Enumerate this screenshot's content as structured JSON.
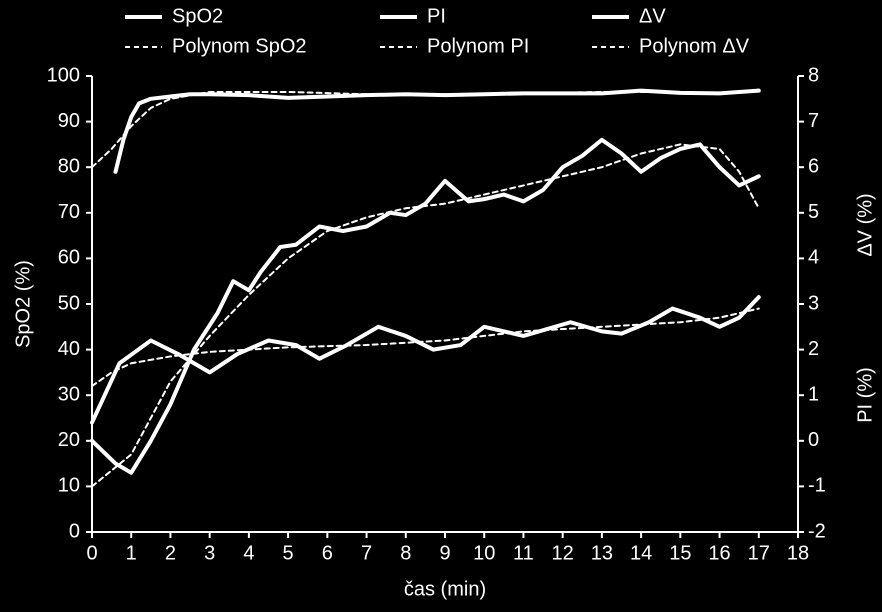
{
  "chart_data": {
    "type": "line",
    "xlabel": "čas (min)",
    "ylabel": "SpO2 (%)",
    "y2labels": [
      "ΔV (%)",
      "PI (%)"
    ],
    "xlim": [
      0,
      18
    ],
    "xticks": [
      0,
      1,
      2,
      3,
      4,
      5,
      6,
      7,
      8,
      9,
      10,
      11,
      12,
      13,
      14,
      15,
      16,
      17,
      18
    ],
    "ylim": [
      0,
      100
    ],
    "yticks": [
      0,
      10,
      20,
      30,
      40,
      50,
      60,
      70,
      80,
      90,
      100
    ],
    "y2lim": [
      -2,
      8
    ],
    "y2ticks": [
      -2,
      -1,
      0,
      1,
      2,
      3,
      4,
      5,
      6,
      7,
      8
    ],
    "series": [
      {
        "name": "SpO2",
        "color": "#ffffff",
        "dashed": false,
        "x": [
          0.6,
          0.8,
          1,
          1.2,
          1.5,
          2,
          2.5,
          3,
          4,
          5,
          6,
          7,
          8,
          9,
          10,
          11,
          12,
          13,
          14,
          15,
          16,
          17
        ],
        "values": [
          79,
          86,
          91,
          94,
          95,
          95.5,
          96,
          96,
          95.8,
          95.2,
          95.5,
          95.8,
          96,
          95.8,
          96,
          96.2,
          96.2,
          96.2,
          96.8,
          96.3,
          96.2,
          96.8
        ]
      },
      {
        "name": "PI",
        "color": "#ffffff",
        "dashed": false,
        "axis": "y2",
        "x": [
          0,
          0.7,
          1.5,
          2.2,
          3,
          3.7,
          4.5,
          5.2,
          5.8,
          6.5,
          7.3,
          8,
          8.7,
          9.4,
          10,
          11,
          12.2,
          13,
          13.5,
          14.2,
          14.8,
          15.5,
          16,
          16.5,
          17
        ],
        "values": [
          0.4,
          1.7,
          2.2,
          1.9,
          1.5,
          1.9,
          2.2,
          2.1,
          1.8,
          2.1,
          2.5,
          2.3,
          2,
          2.1,
          2.5,
          2.3,
          2.6,
          2.4,
          2.35,
          2.6,
          2.9,
          2.7,
          2.5,
          2.7,
          3.15
        ]
      },
      {
        "name": "ΔV",
        "color": "#ffffff",
        "dashed": false,
        "axis": "y2",
        "x": [
          0,
          0.6,
          1,
          1.5,
          2,
          2.6,
          3.2,
          3.6,
          4,
          4.3,
          4.8,
          5.2,
          5.8,
          6.4,
          7,
          7.6,
          8,
          8.5,
          9,
          9.6,
          10,
          10.5,
          11,
          11.5,
          12,
          12.5,
          13,
          13.5,
          14,
          14.5,
          15,
          15.5,
          16,
          16.5,
          17
        ],
        "values": [
          0,
          -0.5,
          -0.7,
          0,
          0.8,
          2,
          2.8,
          3.5,
          3.3,
          3.7,
          4.25,
          4.3,
          4.7,
          4.6,
          4.7,
          5,
          4.95,
          5.2,
          5.7,
          5.25,
          5.3,
          5.4,
          5.25,
          5.5,
          6,
          6.25,
          6.6,
          6.3,
          5.9,
          6.2,
          6.4,
          6.5,
          6,
          5.6,
          5.8
        ]
      },
      {
        "name": "Polynom SpO2",
        "color": "#ffffff",
        "dashed": true,
        "x": [
          0,
          0.5,
          1,
          1.5,
          2,
          3,
          5,
          7,
          10,
          13,
          15,
          16,
          17
        ],
        "values": [
          80,
          84,
          89,
          93,
          95,
          96.5,
          96.5,
          96,
          96,
          96.5,
          96.5,
          96,
          97
        ]
      },
      {
        "name": "Polynom PI",
        "color": "#ffffff",
        "dashed": true,
        "axis": "y2",
        "x": [
          0,
          0.5,
          1,
          2,
          3,
          5,
          7,
          9,
          11,
          13,
          15,
          16,
          17
        ],
        "values": [
          1.2,
          1.5,
          1.7,
          1.85,
          1.95,
          2.05,
          2.1,
          2.2,
          2.4,
          2.5,
          2.6,
          2.7,
          2.9
        ]
      },
      {
        "name": "Polynom ΔV",
        "color": "#ffffff",
        "dashed": true,
        "axis": "y2",
        "x": [
          0,
          1,
          1.5,
          2,
          3,
          4,
          5,
          6,
          7,
          8,
          9,
          10,
          11,
          12,
          13,
          14,
          15,
          16,
          16.5,
          17
        ],
        "values": [
          -1,
          -0.3,
          0.5,
          1.3,
          2.3,
          3.2,
          4,
          4.6,
          4.9,
          5.1,
          5.2,
          5.4,
          5.6,
          5.8,
          6,
          6.3,
          6.5,
          6.4,
          5.9,
          5.1
        ]
      }
    ]
  }
}
